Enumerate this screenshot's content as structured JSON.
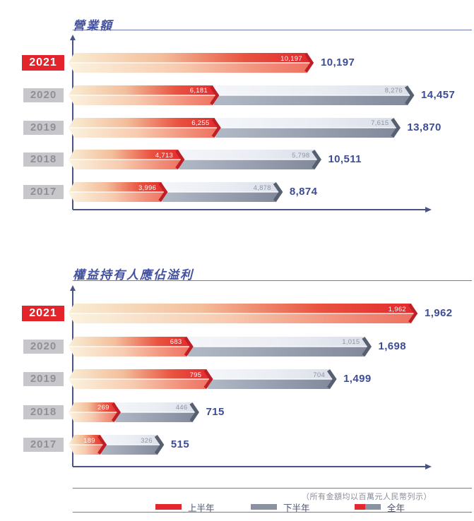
{
  "page": {
    "background": "#ffffff"
  },
  "chart_data": [
    {
      "type": "bar",
      "orientation": "horizontal",
      "title": "營業額",
      "categories": [
        "2021",
        "2020",
        "2019",
        "2018",
        "2017"
      ],
      "highlight_category": "2021",
      "series": [
        {
          "name": "上半年",
          "color": "#e2282c",
          "values": [
            10197,
            6181,
            6255,
            4713,
            3996
          ]
        },
        {
          "name": "下半年",
          "color": "#8a91a0",
          "values": [
            null,
            8276,
            7615,
            5798,
            4878
          ]
        }
      ],
      "totals": [
        10197,
        14457,
        13870,
        10511,
        8874
      ],
      "value_labels": [
        "10,197",
        "6,181",
        "6,255",
        "4,713",
        "3,996",
        "8,276",
        "7,615",
        "5,798",
        "4,878"
      ],
      "total_labels": [
        "10,197",
        "14,457",
        "13,870",
        "10,511",
        "8,874"
      ],
      "xlim": [
        0,
        14457
      ],
      "grid": false,
      "legend_position": "bottom"
    },
    {
      "type": "bar",
      "orientation": "horizontal",
      "title": "權益持有人應佔溢利",
      "categories": [
        "2021",
        "2020",
        "2019",
        "2018",
        "2017"
      ],
      "highlight_category": "2021",
      "series": [
        {
          "name": "上半年",
          "color": "#e2282c",
          "values": [
            1962,
            683,
            795,
            269,
            189
          ]
        },
        {
          "name": "下半年",
          "color": "#8a91a0",
          "values": [
            null,
            1015,
            704,
            446,
            326
          ]
        }
      ],
      "totals": [
        1962,
        1698,
        1499,
        715,
        515
      ],
      "value_labels": [
        "1,962",
        "683",
        "795",
        "269",
        "189",
        "1,015",
        "704",
        "446",
        "326"
      ],
      "total_labels": [
        "1,962",
        "1,698",
        "1,499",
        "715",
        "515"
      ],
      "xlim": [
        0,
        1962
      ],
      "grid": false,
      "legend_position": "bottom"
    }
  ],
  "legend": {
    "note": "（所有金額均以百萬元人民幣列示）",
    "items": [
      {
        "label": "上半年",
        "swatch": "red"
      },
      {
        "label": "下半年",
        "swatch": "gray"
      },
      {
        "label": "全年",
        "swatch": "split"
      }
    ]
  },
  "colors": {
    "first_half_red": "#e2282c",
    "second_half_gray": "#8a91a0",
    "axis_navy": "#4a5384",
    "total_navy": "#3d4c93",
    "title_navy": "#4350a0",
    "year_label_bg": "#c7c7cb",
    "year_label_text": "#8f9096",
    "highlight_red": "#e3252b"
  }
}
